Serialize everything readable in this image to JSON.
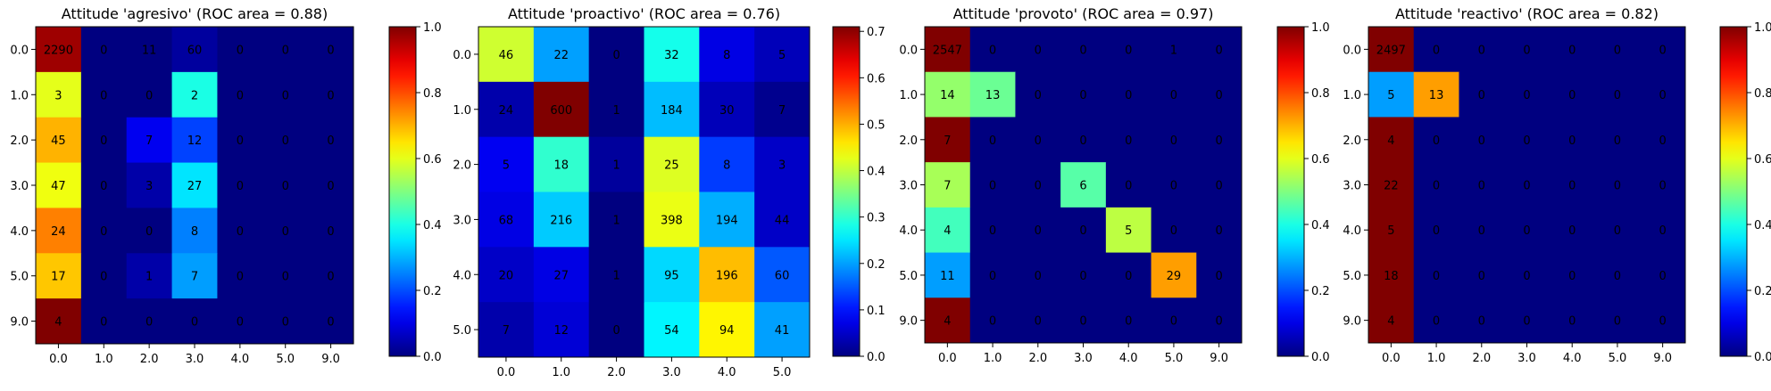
{
  "chart_data": [
    {
      "type": "heatmap",
      "title": "Attitude 'agresivo' (ROC area = 0.88)",
      "x_labels": [
        "0.0",
        "1.0",
        "2.0",
        "3.0",
        "4.0",
        "5.0",
        "9.0"
      ],
      "y_labels": [
        "0.0",
        "1.0",
        "2.0",
        "3.0",
        "4.0",
        "5.0",
        "9.0"
      ],
      "values": [
        [
          2290,
          0,
          11,
          60,
          0,
          0,
          0
        ],
        [
          3,
          0,
          0,
          2,
          0,
          0,
          0
        ],
        [
          45,
          0,
          7,
          12,
          0,
          0,
          0
        ],
        [
          47,
          0,
          3,
          27,
          0,
          0,
          0
        ],
        [
          24,
          0,
          0,
          8,
          0,
          0,
          0
        ],
        [
          17,
          0,
          1,
          7,
          0,
          0,
          0
        ],
        [
          4,
          0,
          0,
          0,
          0,
          0,
          0
        ]
      ],
      "normalized": [
        [
          0.97,
          0.0,
          0.0,
          0.03,
          0.0,
          0.0,
          0.0
        ],
        [
          0.6,
          0.0,
          0.0,
          0.4,
          0.0,
          0.0,
          0.0
        ],
        [
          0.7,
          0.0,
          0.11,
          0.19,
          0.0,
          0.0,
          0.0
        ],
        [
          0.61,
          0.0,
          0.04,
          0.35,
          0.0,
          0.0,
          0.0
        ],
        [
          0.75,
          0.0,
          0.0,
          0.25,
          0.0,
          0.0,
          0.0
        ],
        [
          0.68,
          0.0,
          0.04,
          0.28,
          0.0,
          0.0,
          0.0
        ],
        [
          1.0,
          0.0,
          0.0,
          0.0,
          0.0,
          0.0,
          0.0
        ]
      ],
      "colorbar": {
        "min": 0.0,
        "max": 1.0,
        "ticks": [
          "0.0",
          "0.2",
          "0.4",
          "0.6",
          "0.8",
          "1.0"
        ]
      },
      "colormap": "jet"
    },
    {
      "type": "heatmap",
      "title": "Attitude 'proactivo' (ROC area = 0.76)",
      "x_labels": [
        "0.0",
        "1.0",
        "2.0",
        "3.0",
        "4.0",
        "5.0"
      ],
      "y_labels": [
        "0.0",
        "1.0",
        "2.0",
        "3.0",
        "4.0",
        "5.0"
      ],
      "values": [
        [
          46,
          22,
          0,
          32,
          8,
          5
        ],
        [
          24,
          600,
          1,
          184,
          30,
          7
        ],
        [
          5,
          18,
          1,
          25,
          8,
          3
        ],
        [
          68,
          216,
          1,
          398,
          194,
          44
        ],
        [
          20,
          27,
          1,
          95,
          196,
          60
        ],
        [
          7,
          12,
          0,
          54,
          94,
          41
        ]
      ],
      "normalized": [
        [
          0.41,
          0.2,
          0.0,
          0.28,
          0.07,
          0.04
        ],
        [
          0.03,
          0.71,
          0.0,
          0.22,
          0.04,
          0.01
        ],
        [
          0.08,
          0.3,
          0.02,
          0.42,
          0.13,
          0.05
        ],
        [
          0.07,
          0.23,
          0.0,
          0.43,
          0.21,
          0.05
        ],
        [
          0.05,
          0.07,
          0.0,
          0.24,
          0.49,
          0.15
        ],
        [
          0.03,
          0.06,
          0.0,
          0.26,
          0.45,
          0.2
        ]
      ],
      "colorbar": {
        "min": 0.0,
        "max": 0.71,
        "ticks": [
          "0.0",
          "0.1",
          "0.2",
          "0.3",
          "0.4",
          "0.5",
          "0.6",
          "0.7"
        ]
      },
      "colormap": "jet"
    },
    {
      "type": "heatmap",
      "title": "Attitude 'provoto' (ROC area = 0.97)",
      "x_labels": [
        "0.0",
        "1.0",
        "2.0",
        "3.0",
        "4.0",
        "5.0",
        "9.0"
      ],
      "y_labels": [
        "0.0",
        "1.0",
        "2.0",
        "3.0",
        "4.0",
        "5.0",
        "9.0"
      ],
      "values": [
        [
          2547,
          0,
          0,
          0,
          0,
          1,
          0
        ],
        [
          14,
          13,
          0,
          0,
          0,
          0,
          0
        ],
        [
          7,
          0,
          0,
          0,
          0,
          0,
          0
        ],
        [
          7,
          0,
          0,
          6,
          0,
          0,
          0
        ],
        [
          4,
          0,
          0,
          0,
          5,
          0,
          0
        ],
        [
          11,
          0,
          0,
          0,
          0,
          29,
          0
        ],
        [
          4,
          0,
          0,
          0,
          0,
          0,
          0
        ]
      ],
      "normalized": [
        [
          1.0,
          0.0,
          0.0,
          0.0,
          0.0,
          0.0,
          0.0
        ],
        [
          0.52,
          0.48,
          0.0,
          0.0,
          0.0,
          0.0,
          0.0
        ],
        [
          1.0,
          0.0,
          0.0,
          0.0,
          0.0,
          0.0,
          0.0
        ],
        [
          0.54,
          0.0,
          0.0,
          0.46,
          0.0,
          0.0,
          0.0
        ],
        [
          0.44,
          0.0,
          0.0,
          0.0,
          0.56,
          0.0,
          0.0
        ],
        [
          0.28,
          0.0,
          0.0,
          0.0,
          0.0,
          0.72,
          0.0
        ],
        [
          1.0,
          0.0,
          0.0,
          0.0,
          0.0,
          0.0,
          0.0
        ]
      ],
      "colorbar": {
        "min": 0.0,
        "max": 1.0,
        "ticks": [
          "0.0",
          "0.2",
          "0.4",
          "0.6",
          "0.8",
          "1.0"
        ]
      },
      "colormap": "jet"
    },
    {
      "type": "heatmap",
      "title": "Attitude 'reactivo' (ROC area = 0.82)",
      "x_labels": [
        "0.0",
        "1.0",
        "2.0",
        "3.0",
        "4.0",
        "5.0",
        "9.0"
      ],
      "y_labels": [
        "0.0",
        "1.0",
        "2.0",
        "3.0",
        "4.0",
        "5.0",
        "9.0"
      ],
      "values": [
        [
          2497,
          0,
          0,
          0,
          0,
          0,
          0
        ],
        [
          5,
          13,
          0,
          0,
          0,
          0,
          0
        ],
        [
          4,
          0,
          0,
          0,
          0,
          0,
          0
        ],
        [
          22,
          0,
          0,
          0,
          0,
          0,
          0
        ],
        [
          5,
          0,
          0,
          0,
          0,
          0,
          0
        ],
        [
          18,
          0,
          0,
          0,
          0,
          0,
          0
        ],
        [
          4,
          0,
          0,
          0,
          0,
          0,
          0
        ]
      ],
      "normalized": [
        [
          1.0,
          0.0,
          0.0,
          0.0,
          0.0,
          0.0,
          0.0
        ],
        [
          0.28,
          0.72,
          0.0,
          0.0,
          0.0,
          0.0,
          0.0
        ],
        [
          1.0,
          0.0,
          0.0,
          0.0,
          0.0,
          0.0,
          0.0
        ],
        [
          1.0,
          0.0,
          0.0,
          0.0,
          0.0,
          0.0,
          0.0
        ],
        [
          1.0,
          0.0,
          0.0,
          0.0,
          0.0,
          0.0,
          0.0
        ],
        [
          1.0,
          0.0,
          0.0,
          0.0,
          0.0,
          0.0,
          0.0
        ],
        [
          1.0,
          0.0,
          0.0,
          0.0,
          0.0,
          0.0,
          0.0
        ]
      ],
      "colorbar": {
        "min": 0.0,
        "max": 1.0,
        "ticks": [
          "0.0",
          "0.2",
          "0.4",
          "0.6",
          "0.8",
          "1.0"
        ]
      },
      "colormap": "jet"
    }
  ]
}
